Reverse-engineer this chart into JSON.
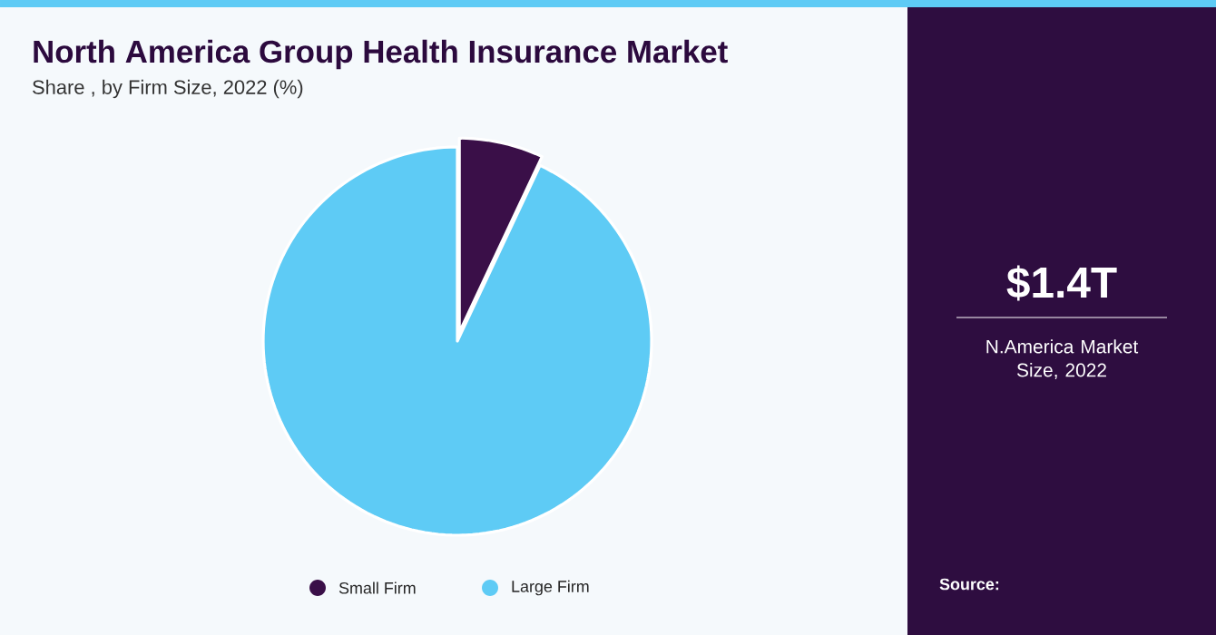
{
  "chart_data": {
    "type": "pie",
    "title": "North America Group Health Insurance Market",
    "subtitle": "Share , by Firm Size, 2022 (%)",
    "categories": [
      "Small Firm",
      "Large Firm"
    ],
    "values": [
      7,
      93
    ],
    "colors": [
      "#3a0f48",
      "#5ecbf5"
    ],
    "legend": "bottom",
    "annotations": [
      "$1.4T",
      "N.America Market Size, 2022",
      "Source:"
    ]
  }
}
